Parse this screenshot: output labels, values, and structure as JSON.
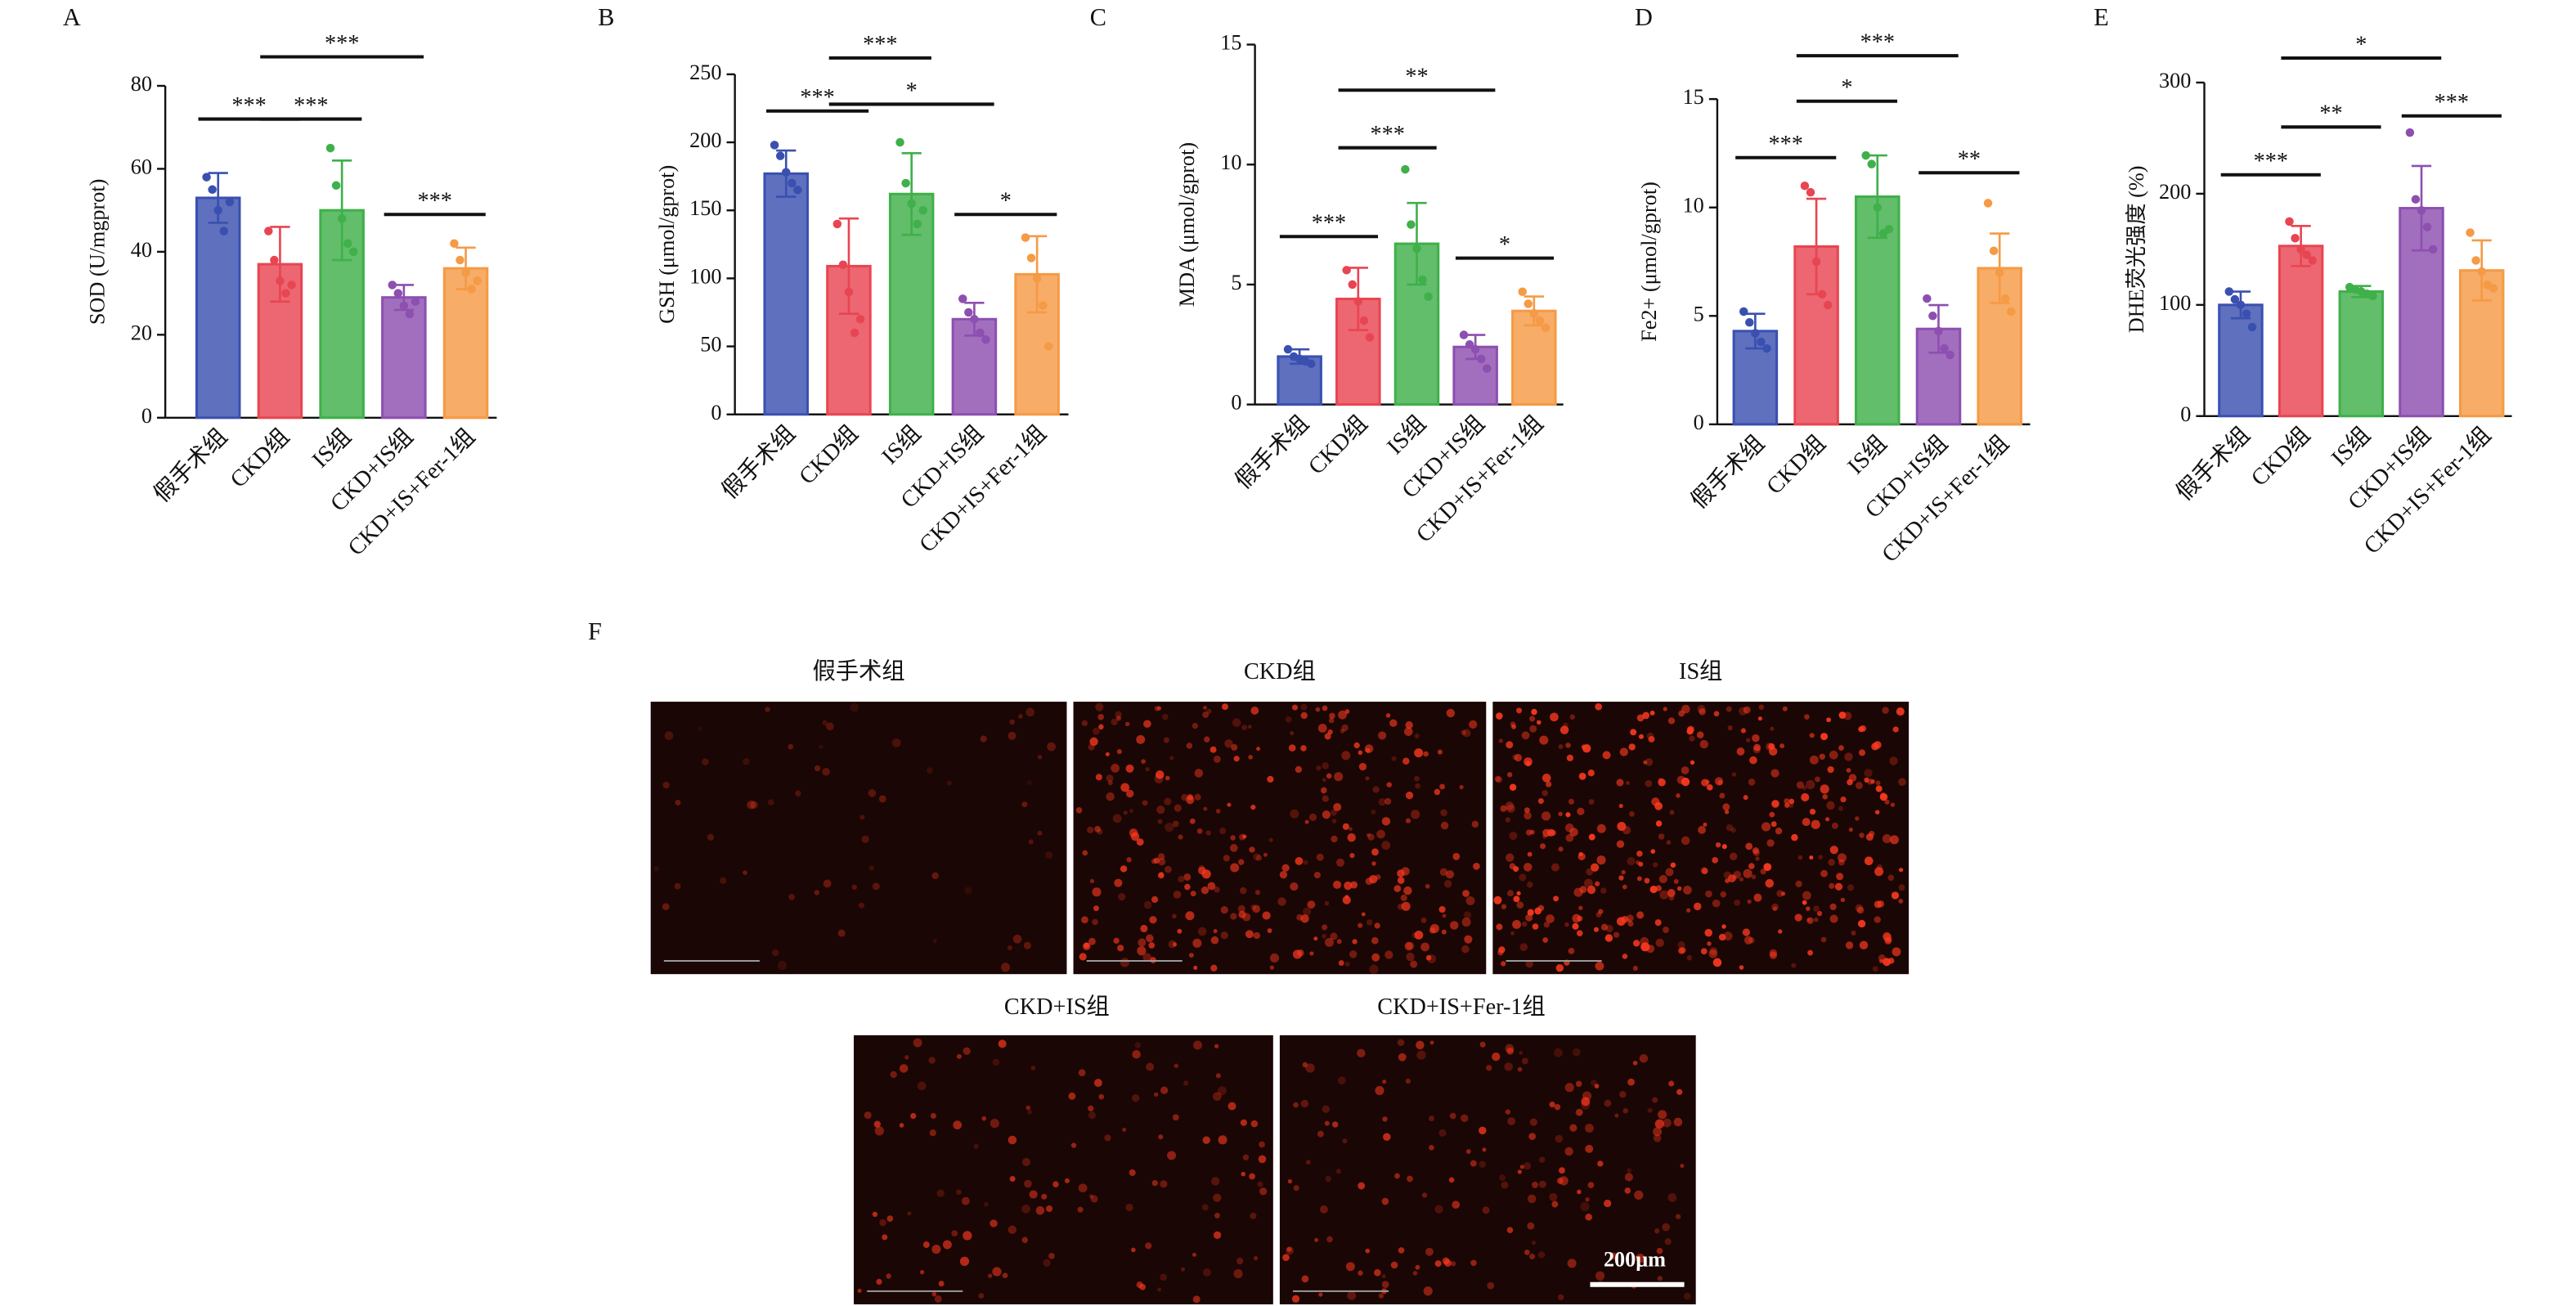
{
  "chart_data": [
    {
      "type": "bar",
      "panel": "A",
      "ylabel": "SOD (U/mgprot)",
      "categories": [
        "假手术组",
        "CKD组",
        "IS组",
        "CKD+IS组",
        "CKD+IS+Fer-1组"
      ],
      "values": [
        53,
        37,
        50,
        29,
        36
      ],
      "errors": [
        6,
        9,
        12,
        3,
        5
      ],
      "points": [
        [
          58,
          55,
          50,
          45,
          52
        ],
        [
          45,
          38,
          33,
          30,
          32
        ],
        [
          65,
          56,
          48,
          42,
          40
        ],
        [
          32,
          30,
          27,
          25,
          28
        ],
        [
          42,
          38,
          35,
          31,
          33
        ]
      ],
      "colors": [
        "#3a50b0",
        "#e84552",
        "#3fb04a",
        "#8d4fb0",
        "#f59a45"
      ],
      "ylim": [
        0,
        80
      ],
      "yticks": [
        0,
        20,
        40,
        60,
        80
      ],
      "brackets": [
        {
          "from": 0,
          "to": 1,
          "y": 72,
          "label": "***"
        },
        {
          "from": 1,
          "to": 2,
          "y": 72,
          "label": "***"
        },
        {
          "from": 1,
          "to": 3,
          "y": 87,
          "label": "***"
        },
        {
          "from": 3,
          "to": 4,
          "y": 49,
          "label": "***"
        }
      ]
    },
    {
      "type": "bar",
      "panel": "B",
      "ylabel": "GSH (μmol/gprot)",
      "categories": [
        "假手术组",
        "CKD组",
        "IS组",
        "CKD+IS组",
        "CKD+IS+Fer-1组"
      ],
      "values": [
        177,
        109,
        162,
        70,
        103
      ],
      "errors": [
        17,
        35,
        30,
        12,
        28
      ],
      "points": [
        [
          198,
          190,
          178,
          170,
          165
        ],
        [
          140,
          110,
          90,
          60,
          70
        ],
        [
          200,
          170,
          155,
          140,
          150
        ],
        [
          85,
          75,
          70,
          60,
          55
        ],
        [
          130,
          115,
          100,
          80,
          50
        ]
      ],
      "colors": [
        "#3a50b0",
        "#e84552",
        "#3fb04a",
        "#8d4fb0",
        "#f59a45"
      ],
      "ylim": [
        0,
        250
      ],
      "yticks": [
        0,
        50,
        100,
        150,
        200,
        250
      ],
      "brackets": [
        {
          "from": 0,
          "to": 1,
          "y": 223,
          "label": "***"
        },
        {
          "from": 1,
          "to": 2,
          "y": 262,
          "label": "***"
        },
        {
          "from": 1,
          "to": 3,
          "y": 228,
          "label": "*"
        },
        {
          "from": 3,
          "to": 4,
          "y": 147,
          "label": "*"
        }
      ]
    },
    {
      "type": "bar",
      "panel": "C",
      "ylabel": "MDA (μmol/gprot)",
      "categories": [
        "假手术组",
        "CKD组",
        "IS组",
        "CKD+IS组",
        "CKD+IS+Fer-1组"
      ],
      "values": [
        2.0,
        4.4,
        6.7,
        2.4,
        3.9
      ],
      "errors": [
        0.3,
        1.3,
        1.7,
        0.5,
        0.6
      ],
      "points": [
        [
          2.3,
          2.0,
          1.9,
          1.8,
          1.7
        ],
        [
          5.6,
          5.0,
          4.3,
          3.5,
          2.8
        ],
        [
          9.8,
          7.5,
          6.5,
          5.2,
          4.5
        ],
        [
          2.9,
          2.5,
          2.3,
          1.9,
          1.5
        ],
        [
          4.7,
          4.2,
          3.8,
          3.5,
          3.2
        ]
      ],
      "colors": [
        "#3a50b0",
        "#e84552",
        "#3fb04a",
        "#8d4fb0",
        "#f59a45"
      ],
      "ylim": [
        0,
        15
      ],
      "yticks": [
        0,
        5,
        10,
        15
      ],
      "brackets": [
        {
          "from": 0,
          "to": 1,
          "y": 7.0,
          "label": "***"
        },
        {
          "from": 1,
          "to": 2,
          "y": 10.7,
          "label": "***"
        },
        {
          "from": 1,
          "to": 3,
          "y": 13.1,
          "label": "**"
        },
        {
          "from": 3,
          "to": 4,
          "y": 6.1,
          "label": "*"
        }
      ]
    },
    {
      "type": "bar",
      "panel": "D",
      "ylabel": "Fe2+ (μmol/gprot)",
      "categories": [
        "假手术组",
        "CKD组",
        "IS组",
        "CKD+IS组",
        "CKD+IS+Fer-1组"
      ],
      "values": [
        4.3,
        8.2,
        10.5,
        4.4,
        7.2
      ],
      "errors": [
        0.8,
        2.2,
        1.9,
        1.1,
        1.6
      ],
      "points": [
        [
          5.2,
          4.7,
          4.2,
          3.8,
          3.5
        ],
        [
          11.0,
          10.7,
          7.5,
          6.0,
          5.5
        ],
        [
          12.4,
          12.0,
          10.0,
          8.8,
          9.0
        ],
        [
          5.8,
          5.0,
          4.3,
          3.5,
          3.2
        ],
        [
          10.2,
          8.0,
          7.0,
          5.8,
          5.2
        ]
      ],
      "colors": [
        "#3a50b0",
        "#e84552",
        "#3fb04a",
        "#8d4fb0",
        "#f59a45"
      ],
      "ylim": [
        0,
        15
      ],
      "yticks": [
        0,
        5,
        10,
        15
      ],
      "brackets": [
        {
          "from": 0,
          "to": 1,
          "y": 12.3,
          "label": "***"
        },
        {
          "from": 1,
          "to": 2,
          "y": 14.9,
          "label": "*"
        },
        {
          "from": 1,
          "to": 3,
          "y": 17.0,
          "label": "***"
        },
        {
          "from": 3,
          "to": 4,
          "y": 11.6,
          "label": "**"
        }
      ]
    },
    {
      "type": "bar",
      "panel": "E",
      "ylabel": "DHE荧光强度 (%)",
      "categories": [
        "假手术组",
        "CKD组",
        "IS组",
        "CKD+IS组",
        "CKD+IS+Fer-1组"
      ],
      "values": [
        100,
        153,
        112,
        187,
        131
      ],
      "errors": [
        12,
        18,
        5,
        38,
        27
      ],
      "points": [
        [
          112,
          105,
          100,
          92,
          80
        ],
        [
          175,
          160,
          150,
          145,
          140
        ],
        [
          116,
          114,
          112,
          110,
          108
        ],
        [
          255,
          195,
          185,
          170,
          150
        ],
        [
          165,
          140,
          130,
          118,
          115
        ]
      ],
      "colors": [
        "#3a50b0",
        "#e84552",
        "#3fb04a",
        "#8d4fb0",
        "#f59a45"
      ],
      "ylim": [
        0,
        300
      ],
      "yticks": [
        0,
        100,
        200,
        300
      ],
      "brackets": [
        {
          "from": 0,
          "to": 1,
          "y": 217,
          "label": "***"
        },
        {
          "from": 1,
          "to": 2,
          "y": 260,
          "label": "**"
        },
        {
          "from": 1,
          "to": 3,
          "y": 322,
          "label": "*"
        },
        {
          "from": 3,
          "to": 4,
          "y": 270,
          "label": "***"
        }
      ]
    }
  ],
  "image_panel": {
    "panel": "F",
    "titles": [
      "假手术组",
      "CKD组",
      "IS组",
      "CKD+IS组",
      "CKD+IS+Fer-1组"
    ],
    "scale_bar": "200μm"
  }
}
